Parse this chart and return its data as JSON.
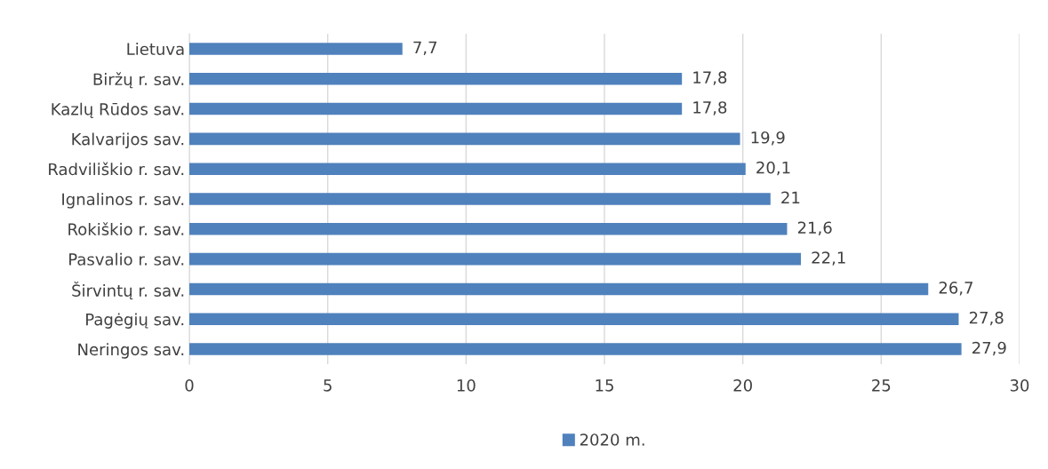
{
  "chart_data": {
    "type": "bar",
    "orientation": "horizontal",
    "categories": [
      "Lietuva",
      "Biržų r. sav.",
      "Kazlų Rūdos sav.",
      "Kalvarijos sav.",
      "Radviliškio r. sav.",
      "Ignalinos r. sav.",
      "Rokiškio r. sav.",
      "Pasvalio r. sav.",
      "Širvintų r. sav.",
      "Pagėgių sav.",
      "Neringos sav."
    ],
    "series": [
      {
        "name": "2020 m.",
        "color": "#4f81bd",
        "values": [
          7.7,
          17.8,
          17.8,
          19.9,
          20.1,
          21,
          21.6,
          22.1,
          26.7,
          27.8,
          27.9
        ],
        "value_labels": [
          "7,7",
          "17,8",
          "17,8",
          "19,9",
          "20,1",
          "21",
          "21,6",
          "22,1",
          "26,7",
          "27,8",
          "27,9"
        ]
      }
    ],
    "xlim": [
      0,
      30
    ],
    "xticks": [
      0,
      5,
      10,
      15,
      20,
      25,
      30
    ],
    "grid": "x",
    "legend": "bottom"
  }
}
